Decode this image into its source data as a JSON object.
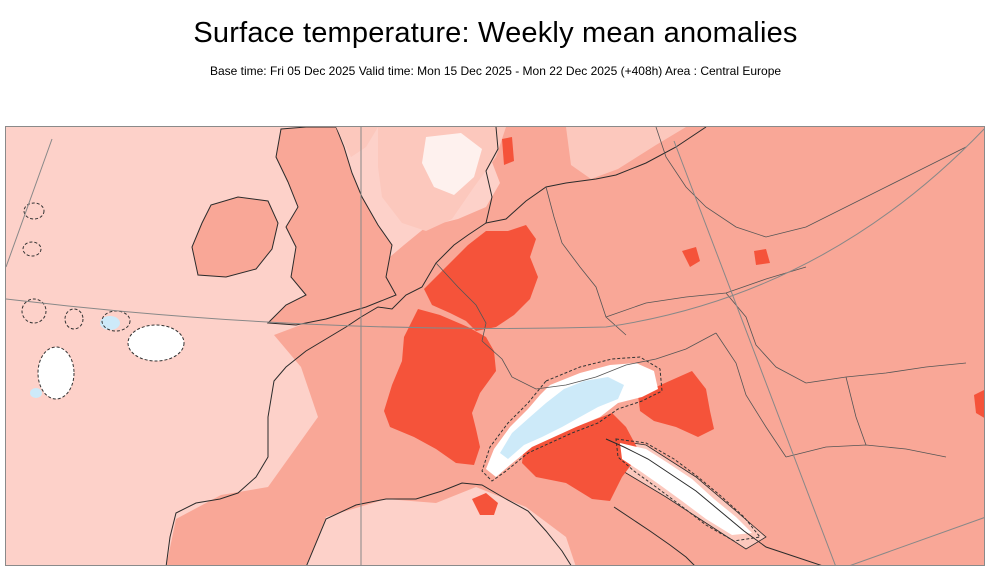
{
  "header": {
    "title": "Surface temperature: Weekly mean anomalies",
    "subtitle": "Base time: Fri 05 Dec 2025 Valid time: Mon 15 Dec 2025 - Mon 22 Dec 2025 (+408h) Area : Central Europe"
  },
  "map": {
    "region": "Central Europe",
    "colors": {
      "ocean_light_anomaly": "#fdd1c9",
      "land_moderate_anomaly": "#f9a797",
      "pale_anomaly": "#fcc8bd",
      "strong_anomaly": "#f5533a",
      "negative_anomaly": "#cdeaf9",
      "near_zero": "#ffffff",
      "coastline": "#2b2b2b",
      "graticule": "#888888"
    }
  }
}
